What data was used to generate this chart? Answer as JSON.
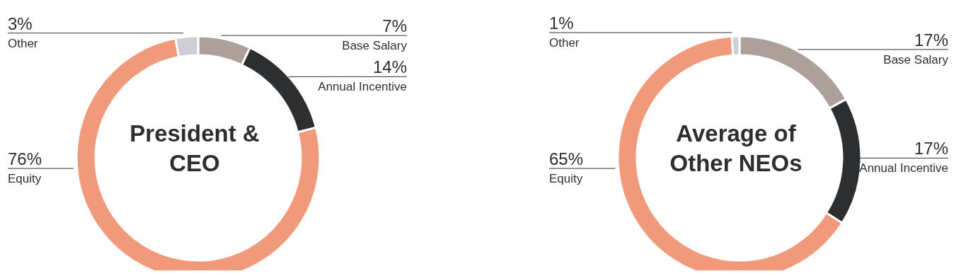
{
  "chart_data": [
    {
      "type": "donut",
      "title": "President & CEO",
      "categories": [
        "Base Salary",
        "Annual Incentive",
        "Equity",
        "Other"
      ],
      "values": [
        7,
        14,
        76,
        3
      ],
      "colors": [
        "#ada09a",
        "#2d2e30",
        "#f0997b",
        "#cfcdd6"
      ],
      "value_labels": [
        "7%",
        "14%",
        "76%",
        "3%"
      ]
    },
    {
      "type": "donut",
      "title": "Average of Other NEOs",
      "categories": [
        "Base Salary",
        "Annual Incentive",
        "Equity",
        "Other"
      ],
      "values": [
        17,
        17,
        65,
        1
      ],
      "colors": [
        "#ada09a",
        "#2d2e30",
        "#f0997b",
        "#cfcdd6"
      ],
      "value_labels": [
        "17%",
        "17%",
        "65%",
        "1%"
      ]
    }
  ]
}
